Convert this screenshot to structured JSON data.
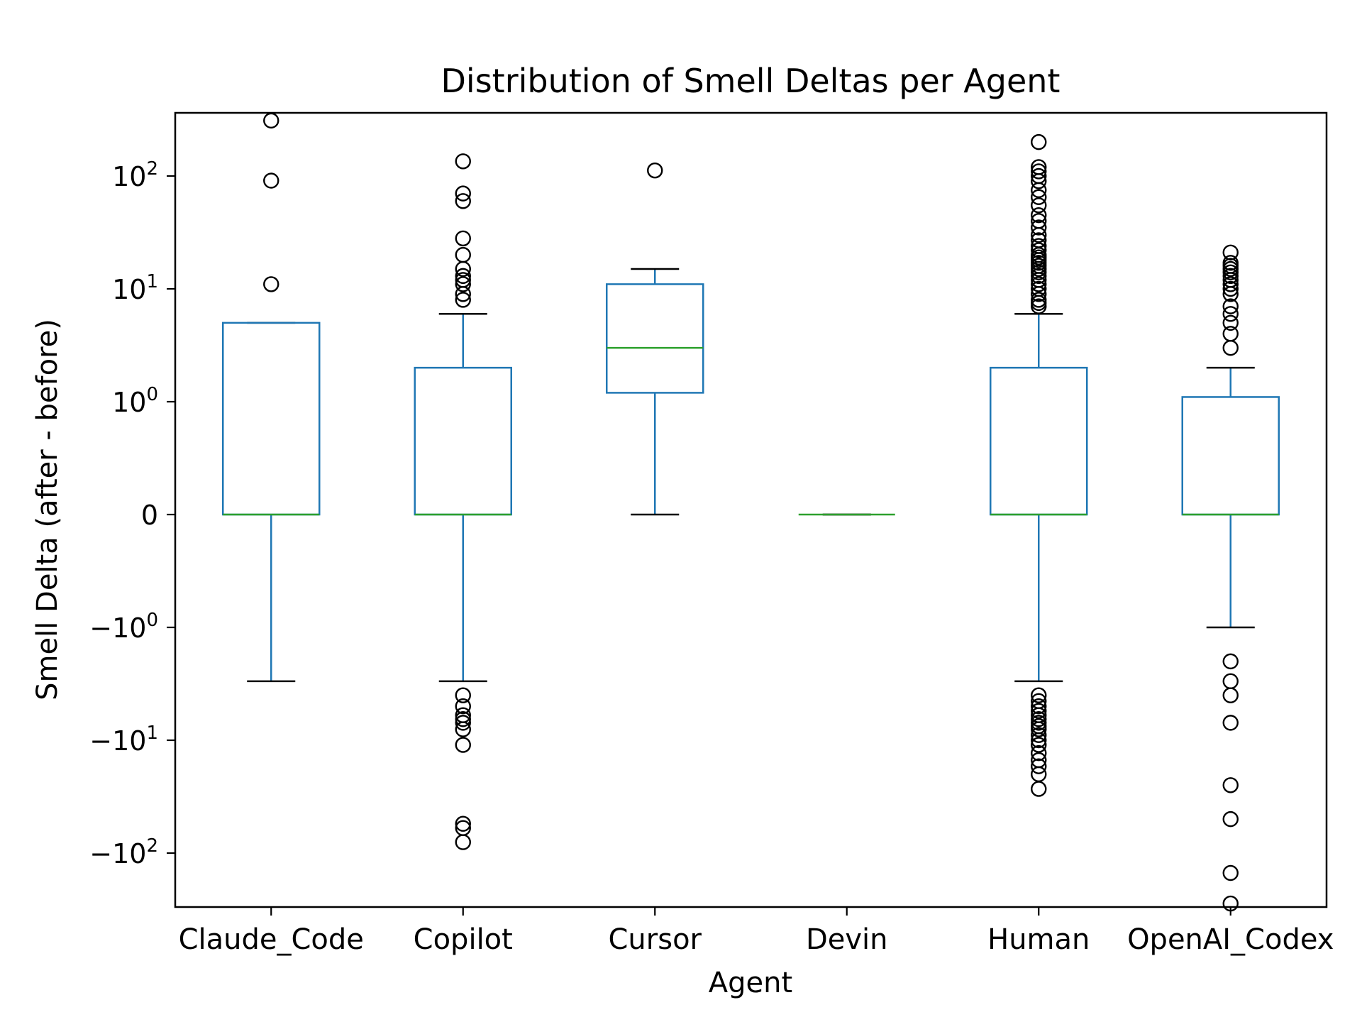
{
  "chart_data": {
    "type": "boxplot",
    "title": "Distribution of Smell Deltas per Agent",
    "xlabel": "Agent",
    "ylabel": "Smell Delta (after - before)",
    "yscale": "symlog",
    "ylim": [
      -450,
      650
    ],
    "grid": false,
    "legend": "none",
    "yticks": [
      {
        "value": 100,
        "base": "10",
        "exp": "2",
        "sign": ""
      },
      {
        "value": 10,
        "base": "10",
        "exp": "1",
        "sign": ""
      },
      {
        "value": 1,
        "base": "10",
        "exp": "0",
        "sign": ""
      },
      {
        "value": 0,
        "label": "0"
      },
      {
        "value": -1,
        "base": "10",
        "exp": "0",
        "sign": "−"
      },
      {
        "value": -10,
        "base": "10",
        "exp": "1",
        "sign": "−"
      },
      {
        "value": -100,
        "base": "10",
        "exp": "2",
        "sign": "−"
      }
    ],
    "categories": [
      "Claude_Code",
      "Copilot",
      "Cursor",
      "Devin",
      "Human",
      "OpenAI_Codex"
    ],
    "boxes": [
      {
        "name": "Claude_Code",
        "whisker_low": -3,
        "q1": 0,
        "median": 0,
        "q3": 5,
        "whisker_high": 5,
        "outliers": [
          11,
          91,
          310
        ]
      },
      {
        "name": "Copilot",
        "whisker_low": -3,
        "q1": 0,
        "median": 0,
        "q3": 2,
        "whisker_high": 6,
        "outliers": [
          -4,
          -5,
          -6,
          -6.5,
          -7,
          -8,
          -11,
          -55,
          -60,
          -80,
          8,
          9,
          11,
          12,
          13,
          15,
          20,
          28,
          60,
          70,
          135
        ]
      },
      {
        "name": "Cursor",
        "whisker_low": 0,
        "q1": 1.2,
        "median": 3,
        "q3": 11,
        "whisker_high": 15,
        "outliers": [
          112
        ]
      },
      {
        "name": "Devin",
        "whisker_low": 0,
        "q1": 0,
        "median": 0,
        "q3": 0,
        "whisker_high": 0,
        "outliers": []
      },
      {
        "name": "Human",
        "whisker_low": -3,
        "q1": 0,
        "median": 0,
        "q3": 2,
        "whisker_high": 6,
        "outliers": [
          -4,
          -4.5,
          -5,
          -5.5,
          -6,
          -6.5,
          -7,
          -7.5,
          -8,
          -9,
          -10,
          -11,
          -13,
          -15,
          -17,
          -20,
          -27,
          7,
          7.5,
          8,
          9,
          10,
          11,
          12,
          13,
          14,
          15,
          16,
          17,
          18,
          19,
          20,
          22,
          24,
          27,
          30,
          35,
          40,
          45,
          55,
          65,
          75,
          90,
          100,
          110,
          120,
          200
        ]
      },
      {
        "name": "OpenAI_Codex",
        "whisker_low": -1,
        "q1": 0,
        "median": 0,
        "q3": 1.1,
        "whisker_high": 2,
        "outliers": [
          -2,
          -3,
          -4,
          -7,
          -25,
          -50,
          -150,
          -280,
          3,
          4,
          5,
          6,
          7,
          9,
          10,
          11,
          12,
          13,
          14,
          15,
          16,
          17,
          21
        ]
      }
    ],
    "colors": {
      "box": "#1f77b4",
      "median": "#2ca02c",
      "cap": "#000000",
      "flier": "#000000",
      "axes": "#000000"
    }
  }
}
